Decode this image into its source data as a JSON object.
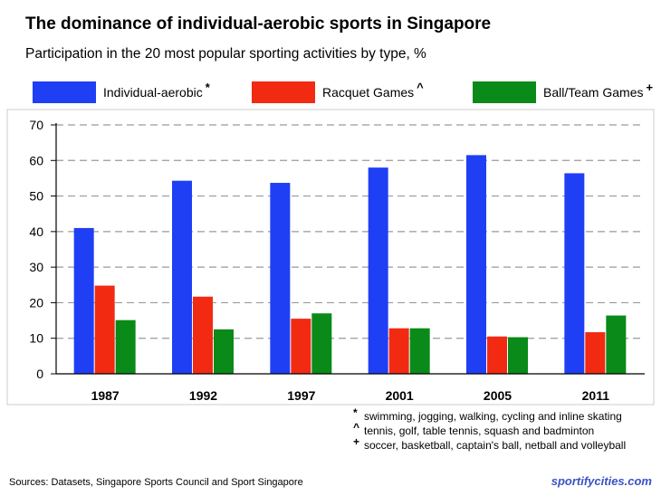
{
  "title": "The dominance of individual-aerobic sports in Singapore",
  "subtitle": "Participation in the 20 most popular sporting activities by type, %",
  "legend": [
    {
      "label": "Individual-aerobic",
      "mark": "*",
      "color": "#1f3ff5"
    },
    {
      "label": "Racquet Games",
      "mark": "^",
      "color": "#f22a12"
    },
    {
      "label": "Ball/Team Games",
      "mark": "+",
      "color": "#0a8a18"
    }
  ],
  "notes": [
    {
      "mark": "*",
      "text": "swimming, jogging, walking, cycling and inline skating"
    },
    {
      "mark": "^",
      "text": "tennis, golf, table tennis, squash and badminton"
    },
    {
      "mark": "+",
      "text": "soccer, basketball, captain's ball, netball and volleyball"
    }
  ],
  "sources": "Sources:  Datasets, Singapore Sports Council and Sport Singapore",
  "brand": "sportifycities.com",
  "chart_data": {
    "type": "bar",
    "title": "The dominance of individual-aerobic sports in Singapore",
    "subtitle": "Participation in the 20 most popular sporting activities by type, %",
    "xlabel": "",
    "ylabel": "",
    "categories": [
      "1987",
      "1992",
      "1997",
      "2001",
      "2005",
      "2011"
    ],
    "series": [
      {
        "name": "Individual-aerobic",
        "color": "#1f3ff5",
        "values": [
          41,
          54.3,
          53.7,
          58,
          61.5,
          56.4
        ]
      },
      {
        "name": "Racquet Games",
        "color": "#f22a12",
        "values": [
          24.8,
          21.7,
          15.5,
          12.8,
          10.5,
          11.7
        ]
      },
      {
        "name": "Ball/Team Games",
        "color": "#0a8a18",
        "values": [
          15.1,
          12.5,
          17,
          12.8,
          10.3,
          16.4
        ]
      }
    ],
    "ylim": [
      0,
      70
    ],
    "yticks": [
      0,
      10,
      20,
      30,
      40,
      50,
      60,
      70
    ],
    "grid": true
  }
}
